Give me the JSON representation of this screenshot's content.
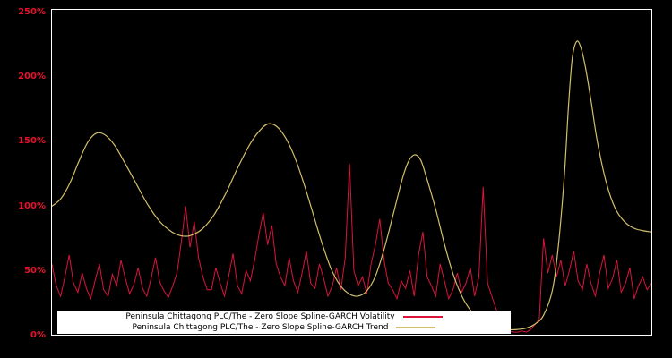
{
  "chart_data": {
    "type": "line",
    "title": "",
    "xlabel": "",
    "ylabel": "",
    "ylim": [
      0,
      250
    ],
    "grid": false,
    "background_color": "#000000",
    "plot_border_color": "#ffffff",
    "axis_label_color": "#e8112d",
    "legend_position": "bottom-center-inside",
    "legend_background": "#ffffff",
    "yticks": [
      "250%",
      "200%",
      "150%",
      "100%",
      "50%",
      "0%"
    ],
    "series": [
      {
        "id": "volatility",
        "name": "Peninsula Chittagong PLC/The - Zero Slope Spline-GARCH Volatility",
        "color": "#dc143c",
        "style": "jagged",
        "x_range": [
          0,
          1
        ],
        "values": [
          55,
          38,
          30,
          45,
          62,
          40,
          33,
          48,
          36,
          28,
          42,
          55,
          35,
          30,
          47,
          38,
          58,
          44,
          32,
          39,
          52,
          36,
          30,
          44,
          60,
          41,
          34,
          29,
          38,
          48,
          72,
          100,
          68,
          88,
          60,
          45,
          35,
          35,
          52,
          40,
          30,
          46,
          63,
          38,
          32,
          50,
          42,
          58,
          78,
          95,
          70,
          85,
          55,
          45,
          38,
          60,
          42,
          33,
          48,
          65,
          40,
          36,
          55,
          44,
          30,
          38,
          52,
          35,
          60,
          133,
          50,
          38,
          45,
          32,
          55,
          70,
          90,
          58,
          40,
          35,
          28,
          42,
          36,
          50,
          30,
          62,
          80,
          45,
          38,
          30,
          55,
          42,
          28,
          35,
          48,
          33,
          40,
          52,
          30,
          45,
          115,
          40,
          30,
          20,
          12,
          6,
          3,
          2,
          2,
          3,
          2,
          4,
          8,
          12,
          75,
          48,
          62,
          45,
          58,
          38,
          50,
          65,
          42,
          35,
          55,
          40,
          30,
          48,
          62,
          36,
          44,
          58,
          33,
          40,
          52,
          28,
          38,
          45,
          35,
          40
        ]
      },
      {
        "id": "trend",
        "name": "Peninsula Chittagong PLC/The - Zero Slope Spline-GARCH Trend",
        "color": "#d2c06a",
        "style": "smooth",
        "points": [
          [
            0.0,
            100
          ],
          [
            0.015,
            106
          ],
          [
            0.03,
            118
          ],
          [
            0.045,
            135
          ],
          [
            0.06,
            150
          ],
          [
            0.075,
            157
          ],
          [
            0.09,
            155
          ],
          [
            0.105,
            147
          ],
          [
            0.12,
            135
          ],
          [
            0.14,
            118
          ],
          [
            0.16,
            101
          ],
          [
            0.18,
            88
          ],
          [
            0.2,
            80
          ],
          [
            0.215,
            77
          ],
          [
            0.23,
            77
          ],
          [
            0.25,
            82
          ],
          [
            0.27,
            93
          ],
          [
            0.29,
            110
          ],
          [
            0.31,
            130
          ],
          [
            0.33,
            148
          ],
          [
            0.345,
            158
          ],
          [
            0.36,
            164
          ],
          [
            0.375,
            162
          ],
          [
            0.39,
            153
          ],
          [
            0.405,
            138
          ],
          [
            0.42,
            118
          ],
          [
            0.435,
            95
          ],
          [
            0.45,
            72
          ],
          [
            0.465,
            52
          ],
          [
            0.48,
            39
          ],
          [
            0.495,
            32
          ],
          [
            0.51,
            30
          ],
          [
            0.525,
            34
          ],
          [
            0.54,
            46
          ],
          [
            0.555,
            68
          ],
          [
            0.57,
            95
          ],
          [
            0.585,
            122
          ],
          [
            0.595,
            135
          ],
          [
            0.605,
            140
          ],
          [
            0.615,
            136
          ],
          [
            0.625,
            122
          ],
          [
            0.64,
            98
          ],
          [
            0.655,
            70
          ],
          [
            0.67,
            46
          ],
          [
            0.685,
            29
          ],
          [
            0.7,
            18
          ],
          [
            0.715,
            11
          ],
          [
            0.73,
            7
          ],
          [
            0.745,
            5
          ],
          [
            0.76,
            4
          ],
          [
            0.775,
            4
          ],
          [
            0.79,
            5
          ],
          [
            0.805,
            8
          ],
          [
            0.82,
            15
          ],
          [
            0.835,
            35
          ],
          [
            0.845,
            70
          ],
          [
            0.855,
            125
          ],
          [
            0.862,
            180
          ],
          [
            0.868,
            215
          ],
          [
            0.875,
            228
          ],
          [
            0.882,
            224
          ],
          [
            0.89,
            208
          ],
          [
            0.9,
            180
          ],
          [
            0.91,
            150
          ],
          [
            0.925,
            118
          ],
          [
            0.94,
            98
          ],
          [
            0.955,
            88
          ],
          [
            0.97,
            83
          ],
          [
            0.985,
            81
          ],
          [
            1.0,
            80
          ]
        ]
      }
    ]
  }
}
